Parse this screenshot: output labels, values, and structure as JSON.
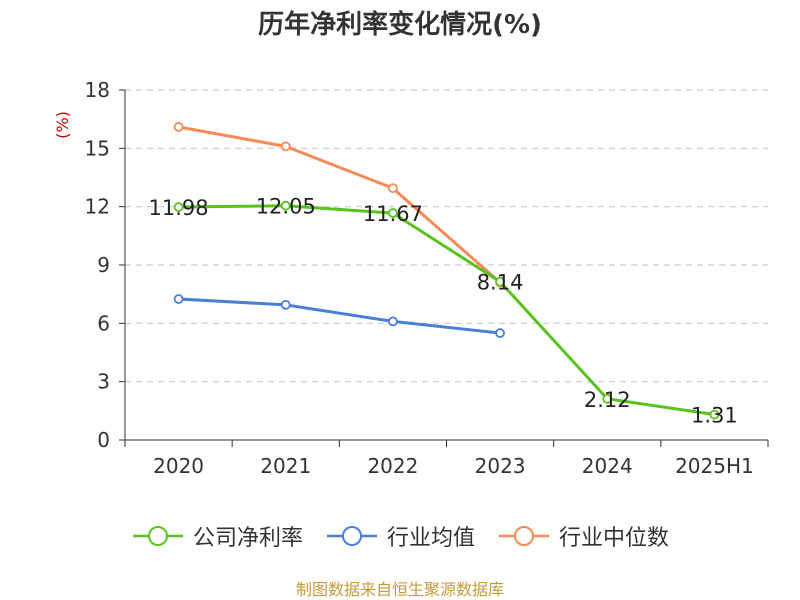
{
  "chart_data": {
    "type": "line",
    "title": "历年净利率变化情况(%)",
    "ylabel": "(%)",
    "ylim": [
      0,
      18
    ],
    "yticks": [
      0,
      3,
      6,
      9,
      12,
      15,
      18
    ],
    "categories": [
      "2020",
      "2021",
      "2022",
      "2023",
      "2024",
      "2025H1"
    ],
    "grid": true,
    "legend_position": "bottom",
    "series": [
      {
        "name": "公司净利率",
        "color": "#5ac21e",
        "values": [
          11.98,
          12.05,
          11.67,
          8.14,
          2.12,
          1.31
        ],
        "show_labels": true
      },
      {
        "name": "行业均值",
        "color": "#4a7fd8",
        "values": [
          7.25,
          6.95,
          6.1,
          5.5,
          null,
          null
        ],
        "show_labels": false
      },
      {
        "name": "行业中位数",
        "color": "#f58a58",
        "values": [
          16.1,
          15.1,
          12.95,
          8.1,
          null,
          null
        ],
        "show_labels": false
      }
    ]
  },
  "footer": {
    "source": "制图数据来自恒生聚源数据库",
    "source_color": "#c79a3c"
  },
  "colors": {
    "axis": "#333333",
    "grid": "#cccccc",
    "ylabel": "#cc0000"
  }
}
